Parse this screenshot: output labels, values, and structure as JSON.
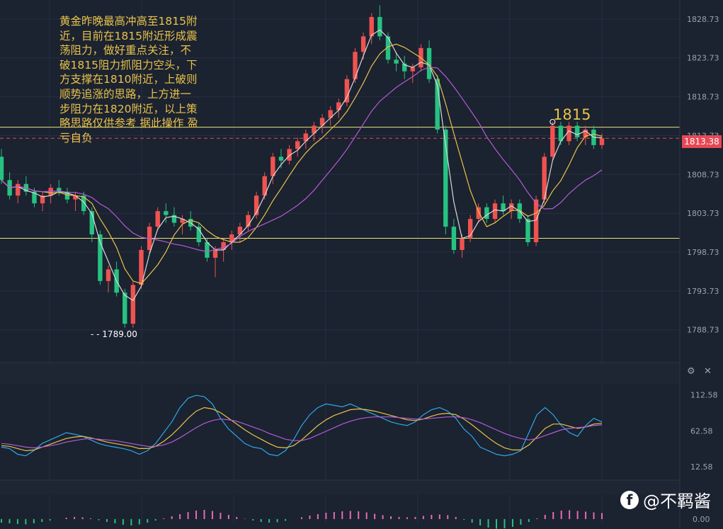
{
  "annotation": "黄金昨晚最高冲高至1815附近，目前在1815附近形成震荡阻力，做好重点关注，不破1815阻力抓阻力空头，下方支撑在1810附近，上破则顺势追涨的思路，上方进一步阻力在1820附近，以上策略思路仅供参考 据此操作 盈亏自负",
  "resistance_label": "1815",
  "low_label": "1789.00",
  "current_price_label": "1813.38",
  "watermark": "@不羁酱",
  "watermark_logo": "f",
  "colors": {
    "bg": "#1b2230",
    "up": "#ef5350",
    "down": "#26c281",
    "ma_fast": "#d9d9d9",
    "ma_mid": "#e8c34a",
    "ma_slow": "#b55bd6",
    "hline": "#e8e47a",
    "current": "#e84855",
    "osc_blue": "#2ea8e8"
  },
  "icons": [
    "gear-icon",
    "close-icon"
  ],
  "chart_data": [
    {
      "type": "candlestick",
      "title": "",
      "ylim": [
        1784.5,
        1831
      ],
      "yticks": [
        "1828.73",
        "1823.73",
        "1818.73",
        "1813.73",
        "1808.73",
        "1803.73",
        "1798.73",
        "1793.73",
        "1788.73"
      ],
      "horizontal_lines": [
        1814.8,
        1800.5
      ],
      "current_price": 1813.38,
      "low_marker": 1789.0,
      "ohlc": [
        [
          1811.0,
          1812.0,
          1807.5,
          1808.0
        ],
        [
          1808.0,
          1809.0,
          1805.5,
          1806.0
        ],
        [
          1806.0,
          1808.0,
          1805.0,
          1807.5
        ],
        [
          1807.5,
          1808.5,
          1806.0,
          1806.5
        ],
        [
          1806.5,
          1807.0,
          1804.5,
          1805.0
        ],
        [
          1805.0,
          1806.5,
          1804.0,
          1806.0
        ],
        [
          1806.0,
          1807.5,
          1805.0,
          1807.0
        ],
        [
          1807.0,
          1808.0,
          1806.0,
          1806.5
        ],
        [
          1806.5,
          1807.0,
          1805.0,
          1805.5
        ],
        [
          1805.5,
          1806.5,
          1804.0,
          1806.0
        ],
        [
          1806.0,
          1806.5,
          1803.5,
          1804.0
        ],
        [
          1804.0,
          1804.5,
          1800.0,
          1801.0
        ],
        [
          1801.0,
          1801.5,
          1794.5,
          1795.0
        ],
        [
          1795.0,
          1797.0,
          1793.5,
          1796.5
        ],
        [
          1796.5,
          1797.5,
          1793.0,
          1793.5
        ],
        [
          1793.5,
          1794.0,
          1789.0,
          1789.5
        ],
        [
          1789.5,
          1795.0,
          1789.0,
          1794.5
        ],
        [
          1794.5,
          1799.5,
          1794.0,
          1799.0
        ],
        [
          1799.0,
          1802.5,
          1798.5,
          1802.0
        ],
        [
          1802.0,
          1804.5,
          1801.5,
          1804.0
        ],
        [
          1804.0,
          1805.0,
          1802.5,
          1803.5
        ],
        [
          1803.5,
          1804.5,
          1802.0,
          1802.5
        ],
        [
          1802.5,
          1803.5,
          1801.0,
          1803.0
        ],
        [
          1803.0,
          1804.0,
          1801.5,
          1802.0
        ],
        [
          1802.0,
          1802.5,
          1799.5,
          1800.0
        ],
        [
          1800.0,
          1800.5,
          1797.5,
          1798.0
        ],
        [
          1798.0,
          1799.5,
          1795.5,
          1799.0
        ],
        [
          1799.0,
          1800.5,
          1797.5,
          1800.0
        ],
        [
          1800.0,
          1801.5,
          1799.0,
          1801.0
        ],
        [
          1801.0,
          1802.5,
          1800.0,
          1802.0
        ],
        [
          1802.0,
          1804.0,
          1801.5,
          1803.5
        ],
        [
          1803.5,
          1806.5,
          1803.0,
          1806.0
        ],
        [
          1806.0,
          1809.0,
          1805.5,
          1808.5
        ],
        [
          1808.5,
          1811.5,
          1807.5,
          1811.0
        ],
        [
          1811.0,
          1812.0,
          1809.5,
          1810.5
        ],
        [
          1810.5,
          1812.5,
          1810.0,
          1812.0
        ],
        [
          1812.0,
          1813.5,
          1811.0,
          1813.0
        ],
        [
          1813.0,
          1814.5,
          1812.0,
          1814.0
        ],
        [
          1814.0,
          1815.5,
          1813.0,
          1815.0
        ],
        [
          1815.0,
          1816.5,
          1814.0,
          1816.0
        ],
        [
          1816.0,
          1817.5,
          1815.0,
          1817.0
        ],
        [
          1817.0,
          1818.5,
          1816.0,
          1818.0
        ],
        [
          1818.0,
          1821.5,
          1817.5,
          1821.0
        ],
        [
          1821.0,
          1825.0,
          1820.5,
          1824.5
        ],
        [
          1824.5,
          1827.0,
          1823.5,
          1826.5
        ],
        [
          1826.5,
          1829.5,
          1825.5,
          1829.0
        ],
        [
          1829.0,
          1830.5,
          1826.0,
          1826.5
        ],
        [
          1826.5,
          1827.0,
          1823.0,
          1823.5
        ],
        [
          1823.5,
          1824.5,
          1822.0,
          1823.0
        ],
        [
          1823.0,
          1824.0,
          1821.0,
          1822.0
        ],
        [
          1822.0,
          1823.0,
          1820.5,
          1822.5
        ],
        [
          1822.5,
          1825.5,
          1822.0,
          1825.0
        ],
        [
          1825.0,
          1826.0,
          1820.5,
          1821.0
        ],
        [
          1821.0,
          1821.5,
          1814.0,
          1814.5
        ],
        [
          1814.5,
          1815.0,
          1801.0,
          1802.0
        ],
        [
          1802.0,
          1803.0,
          1798.5,
          1799.0
        ],
        [
          1799.0,
          1801.0,
          1798.0,
          1800.5
        ],
        [
          1800.5,
          1803.5,
          1800.0,
          1803.0
        ],
        [
          1803.0,
          1805.0,
          1802.5,
          1804.5
        ],
        [
          1804.5,
          1805.0,
          1802.5,
          1803.0
        ],
        [
          1803.0,
          1805.5,
          1802.5,
          1805.0
        ],
        [
          1805.0,
          1806.0,
          1803.5,
          1804.0
        ],
        [
          1804.0,
          1805.5,
          1803.0,
          1805.0
        ],
        [
          1805.0,
          1805.5,
          1802.5,
          1803.0
        ],
        [
          1803.0,
          1803.5,
          1799.5,
          1800.0
        ],
        [
          1800.0,
          1806.0,
          1799.5,
          1805.5
        ],
        [
          1805.5,
          1811.5,
          1805.0,
          1811.0
        ],
        [
          1811.0,
          1815.5,
          1810.5,
          1815.0
        ],
        [
          1815.0,
          1815.5,
          1812.5,
          1813.0
        ],
        [
          1813.0,
          1815.5,
          1812.5,
          1815.0
        ],
        [
          1815.0,
          1815.5,
          1813.0,
          1813.5
        ],
        [
          1813.5,
          1815.0,
          1812.5,
          1814.5
        ],
        [
          1814.5,
          1815.0,
          1812.0,
          1812.5
        ],
        [
          1812.5,
          1814.0,
          1812.0,
          1813.38
        ]
      ]
    },
    {
      "type": "line",
      "yticks": [
        "112.58",
        "62.58",
        "12.58"
      ],
      "ylim": [
        0,
        125
      ],
      "series": [
        {
          "color": "#2ea8e8",
          "values": [
            40,
            38,
            30,
            28,
            35,
            45,
            50,
            55,
            60,
            58,
            55,
            50,
            45,
            42,
            40,
            38,
            35,
            30,
            35,
            45,
            60,
            75,
            95,
            108,
            112,
            110,
            100,
            80,
            65,
            55,
            45,
            40,
            38,
            30,
            28,
            35,
            50,
            70,
            85,
            95,
            100,
            98,
            96,
            100,
            95,
            90,
            85,
            80,
            75,
            72,
            70,
            75,
            85,
            92,
            95,
            90,
            80,
            65,
            55,
            40,
            35,
            30,
            28,
            30,
            35,
            60,
            85,
            95,
            85,
            70,
            60,
            55,
            70,
            80,
            75
          ]
        },
        {
          "color": "#e8c34a",
          "values": [
            42,
            41,
            38,
            35,
            36,
            40,
            44,
            48,
            52,
            54,
            55,
            53,
            50,
            47,
            45,
            43,
            41,
            38,
            38,
            41,
            48,
            57,
            68,
            80,
            90,
            95,
            93,
            88,
            80,
            72,
            64,
            57,
            51,
            45,
            40,
            39,
            42,
            50,
            60,
            70,
            78,
            84,
            88,
            92,
            93,
            92,
            90,
            87,
            84,
            81,
            78,
            77,
            79,
            83,
            86,
            87,
            85,
            79,
            71,
            62,
            53,
            45,
            39,
            36,
            36,
            43,
            54,
            66,
            72,
            72,
            69,
            66,
            68,
            72,
            73
          ]
        },
        {
          "color": "#b55bd6",
          "values": [
            45,
            44,
            42,
            40,
            39,
            40,
            42,
            44,
            47,
            49,
            51,
            52,
            51,
            50,
            49,
            47,
            45,
            43,
            41,
            41,
            43,
            47,
            53,
            60,
            67,
            73,
            77,
            79,
            78,
            76,
            72,
            68,
            64,
            59,
            55,
            51,
            49,
            49,
            52,
            57,
            62,
            67,
            72,
            76,
            79,
            81,
            82,
            82,
            82,
            81,
            80,
            79,
            79,
            80,
            81,
            82,
            82,
            81,
            78,
            74,
            69,
            64,
            59,
            55,
            52,
            50,
            52,
            56,
            60,
            64,
            66,
            67,
            68,
            70,
            71
          ]
        }
      ]
    },
    {
      "type": "bar",
      "yticks": [
        "0.00"
      ],
      "values": [
        -1,
        -1.2,
        -1.4,
        -1.5,
        -1.2,
        -0.8,
        -0.4,
        0,
        0.4,
        0.6,
        0.5,
        0.2,
        -0.3,
        -0.8,
        -1.2,
        -1.6,
        -1.8,
        -1.5,
        -1,
        -0.4,
        0.2,
        0.8,
        1.4,
        2,
        2.4,
        2.6,
        2.3,
        1.8,
        1.2,
        0.6,
        0.1,
        -0.4,
        -0.8,
        -1,
        -0.9,
        -0.5,
        0,
        0.5,
        1,
        1.4,
        1.8,
        2,
        2.2,
        2.3,
        2.2,
        1.9,
        1.5,
        1.1,
        0.8,
        0.6,
        0.5,
        0.6,
        0.9,
        1.2,
        1.3,
        1.1,
        0.6,
        -0.2,
        -1,
        -1.8,
        -2.4,
        -2.7,
        -2.6,
        -2.2,
        -1.6,
        -0.8,
        0.2,
        1.2,
        2,
        2.4,
        2.5,
        2.3,
        2.1,
        1.9,
        1.7
      ]
    }
  ]
}
